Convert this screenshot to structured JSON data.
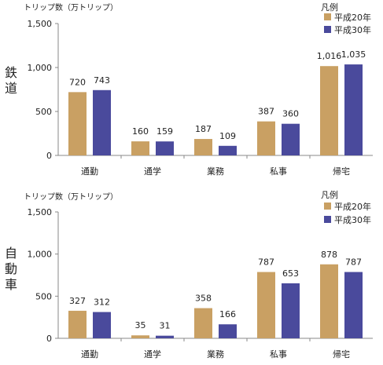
{
  "colors": {
    "h20": "#c9a063",
    "h30": "#4a4a9c",
    "axis": "#888888"
  },
  "chart_data": [
    {
      "type": "bar",
      "side_label": "鉄道",
      "ylabel": "トリップ数（万トリップ）",
      "ylim": [
        0,
        1500
      ],
      "yticks": [
        "0",
        "500",
        "1,000",
        "1,500"
      ],
      "categories": [
        "通勤",
        "通学",
        "業務",
        "私事",
        "帰宅"
      ],
      "legend_title": "凡例",
      "legend_position": "top-right",
      "series": [
        {
          "name": "平成20年",
          "values": [
            720,
            160,
            187,
            387,
            1016
          ],
          "labels": [
            "720",
            "160",
            "187",
            "387",
            "1,016"
          ]
        },
        {
          "name": "平成30年",
          "values": [
            743,
            159,
            109,
            360,
            1035
          ],
          "labels": [
            "743",
            "159",
            "109",
            "360",
            "1,035"
          ]
        }
      ]
    },
    {
      "type": "bar",
      "side_label": "自動車",
      "ylabel": "トリップ数（万トリップ）",
      "ylim": [
        0,
        1500
      ],
      "yticks": [
        "0",
        "500",
        "1,000",
        "1,500"
      ],
      "categories": [
        "通勤",
        "通学",
        "業務",
        "私事",
        "帰宅"
      ],
      "legend_title": "凡例",
      "legend_position": "top-right",
      "series": [
        {
          "name": "平成20年",
          "values": [
            327,
            35,
            358,
            787,
            878
          ],
          "labels": [
            "327",
            "35",
            "358",
            "787",
            "878"
          ]
        },
        {
          "name": "平成30年",
          "values": [
            312,
            31,
            166,
            653,
            787
          ],
          "labels": [
            "312",
            "31",
            "166",
            "653",
            "787"
          ]
        }
      ]
    }
  ]
}
